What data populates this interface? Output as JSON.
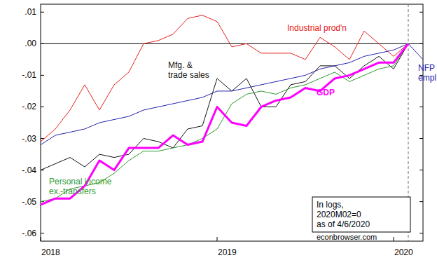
{
  "chart_data": {
    "type": "line",
    "x": [
      2018,
      2018.0833,
      2018.1667,
      2018.25,
      2018.3333,
      2018.4167,
      2018.5,
      2018.5833,
      2018.6667,
      2018.75,
      2018.8333,
      2018.9167,
      2019,
      2019.0833,
      2019.1667,
      2019.25,
      2019.3333,
      2019.4167,
      2019.5,
      2019.5833,
      2019.6667,
      2019.75,
      2019.8333,
      2019.9167,
      2020,
      2020.0833,
      2020.1667
    ],
    "series": [
      {
        "name": "Industrial prod'n",
        "color": "#e8201c",
        "values": [
          -0.031,
          -0.027,
          -0.021,
          -0.013,
          -0.021,
          -0.013,
          -0.009,
          0.0,
          0.001,
          0.003,
          0.008,
          0.009,
          0.007,
          -0.001,
          0.0,
          -0.003,
          -0.003,
          -0.003,
          -0.005,
          0.002,
          -0.001,
          -0.005,
          0.004,
          0.0,
          -0.004,
          0.0,
          null
        ]
      },
      {
        "name": "Mfg. &\ntrade sales",
        "color": "#111111",
        "values": [
          -0.04,
          -0.038,
          -0.036,
          -0.039,
          -0.035,
          -0.036,
          -0.035,
          -0.03,
          -0.031,
          -0.033,
          -0.027,
          -0.026,
          -0.011,
          -0.015,
          -0.011,
          -0.02,
          -0.02,
          -0.013,
          -0.012,
          -0.007,
          -0.007,
          -0.011,
          -0.007,
          -0.004,
          -0.008,
          0.0,
          null
        ]
      },
      {
        "name": "NFP\nempl.",
        "color": "#2323b0",
        "values": [
          -0.032,
          -0.029,
          -0.028,
          -0.027,
          -0.025,
          -0.024,
          -0.023,
          -0.021,
          -0.02,
          -0.019,
          -0.018,
          -0.017,
          -0.015,
          -0.015,
          -0.014,
          -0.013,
          -0.012,
          -0.011,
          -0.01,
          -0.008,
          -0.007,
          -0.006,
          -0.004,
          -0.003,
          -0.002,
          0.0,
          -0.005
        ]
      },
      {
        "name": "Personal income\nex.-transfers",
        "color": "#2e9a2e",
        "values": [
          -0.05,
          -0.049,
          -0.046,
          -0.045,
          -0.044,
          -0.041,
          -0.037,
          -0.034,
          -0.034,
          -0.033,
          -0.032,
          -0.03,
          -0.027,
          -0.019,
          -0.016,
          -0.015,
          -0.016,
          -0.014,
          -0.013,
          -0.011,
          -0.009,
          -0.012,
          -0.01,
          -0.008,
          -0.007,
          0.0,
          null
        ]
      },
      {
        "name": "GDP",
        "color": "#ff00ff",
        "values": [
          -0.051,
          -0.049,
          -0.049,
          -0.045,
          -0.037,
          -0.04,
          -0.033,
          -0.033,
          -0.033,
          -0.029,
          -0.032,
          -0.031,
          -0.02,
          -0.025,
          -0.026,
          -0.02,
          -0.018,
          -0.017,
          -0.014,
          -0.015,
          -0.011,
          -0.01,
          -0.008,
          -0.006,
          -0.006,
          0.0,
          null
        ]
      }
    ],
    "xlim": [
      2018,
      2020.1667
    ],
    "xticks": [
      2018,
      2019,
      2020
    ],
    "ylim": [
      -0.0625,
      0.0125
    ],
    "yticks": [
      {
        "value": 0.01,
        "label": ".01"
      },
      {
        "value": 0,
        "label": ".00"
      },
      {
        "value": -0.01,
        "label": "-.01"
      },
      {
        "value": -0.02,
        "label": "-.02"
      },
      {
        "value": -0.03,
        "label": "-.03"
      },
      {
        "value": -0.04,
        "label": "-.04"
      },
      {
        "value": -0.05,
        "label": "-.05"
      },
      {
        "value": -0.06,
        "label": "-.06"
      }
    ],
    "reference_lines": [
      {
        "axis": "x",
        "value": 2020.0833,
        "line_style": "dashed"
      },
      {
        "axis": "y",
        "value": 0,
        "line_style": "solid"
      }
    ],
    "annotations": [
      "In logs,",
      "2020M02=0",
      "as of 4/6/2020"
    ],
    "source": "econbrowser.com",
    "grid": false
  }
}
